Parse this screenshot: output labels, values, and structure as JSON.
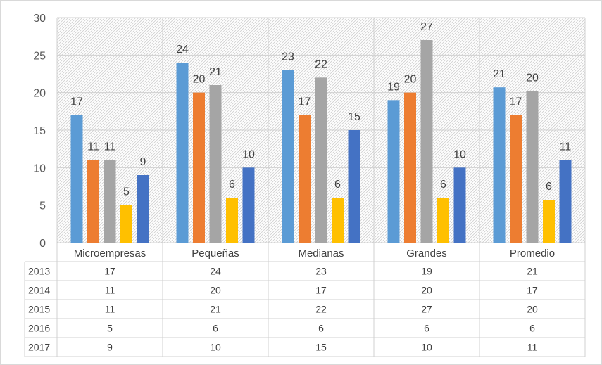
{
  "chart_data": {
    "type": "bar",
    "title": "",
    "xlabel": "",
    "ylabel": "",
    "ylim": [
      0,
      30
    ],
    "yticks": [
      0,
      5,
      10,
      15,
      20,
      25,
      30
    ],
    "grid": true,
    "legend": "data-table",
    "categories": [
      "Microempresas",
      "Pequeñas",
      "Medianas",
      "Grandes",
      "Promedio"
    ],
    "series": [
      {
        "name": "2013",
        "color": "#5b9bd5",
        "values": [
          17,
          24,
          23,
          19,
          20.7
        ],
        "labels": [
          "17",
          "24",
          "23",
          "19",
          "21"
        ]
      },
      {
        "name": "2014",
        "color": "#ed7d31",
        "values": [
          11,
          20,
          17,
          20,
          17
        ],
        "labels": [
          "11",
          "20",
          "17",
          "20",
          "17"
        ]
      },
      {
        "name": "2015",
        "color": "#a5a5a5",
        "values": [
          11,
          21,
          22,
          27,
          20.2
        ],
        "labels": [
          "11",
          "21",
          "22",
          "27",
          "20"
        ]
      },
      {
        "name": "2016",
        "color": "#ffc000",
        "values": [
          5,
          6,
          6,
          6,
          5.7
        ],
        "labels": [
          "5",
          "6",
          "6",
          "6",
          "6"
        ]
      },
      {
        "name": "2017",
        "color": "#4472c4",
        "values": [
          9,
          10,
          15,
          10,
          11
        ],
        "labels": [
          "9",
          "10",
          "15",
          "10",
          "11"
        ]
      }
    ]
  }
}
